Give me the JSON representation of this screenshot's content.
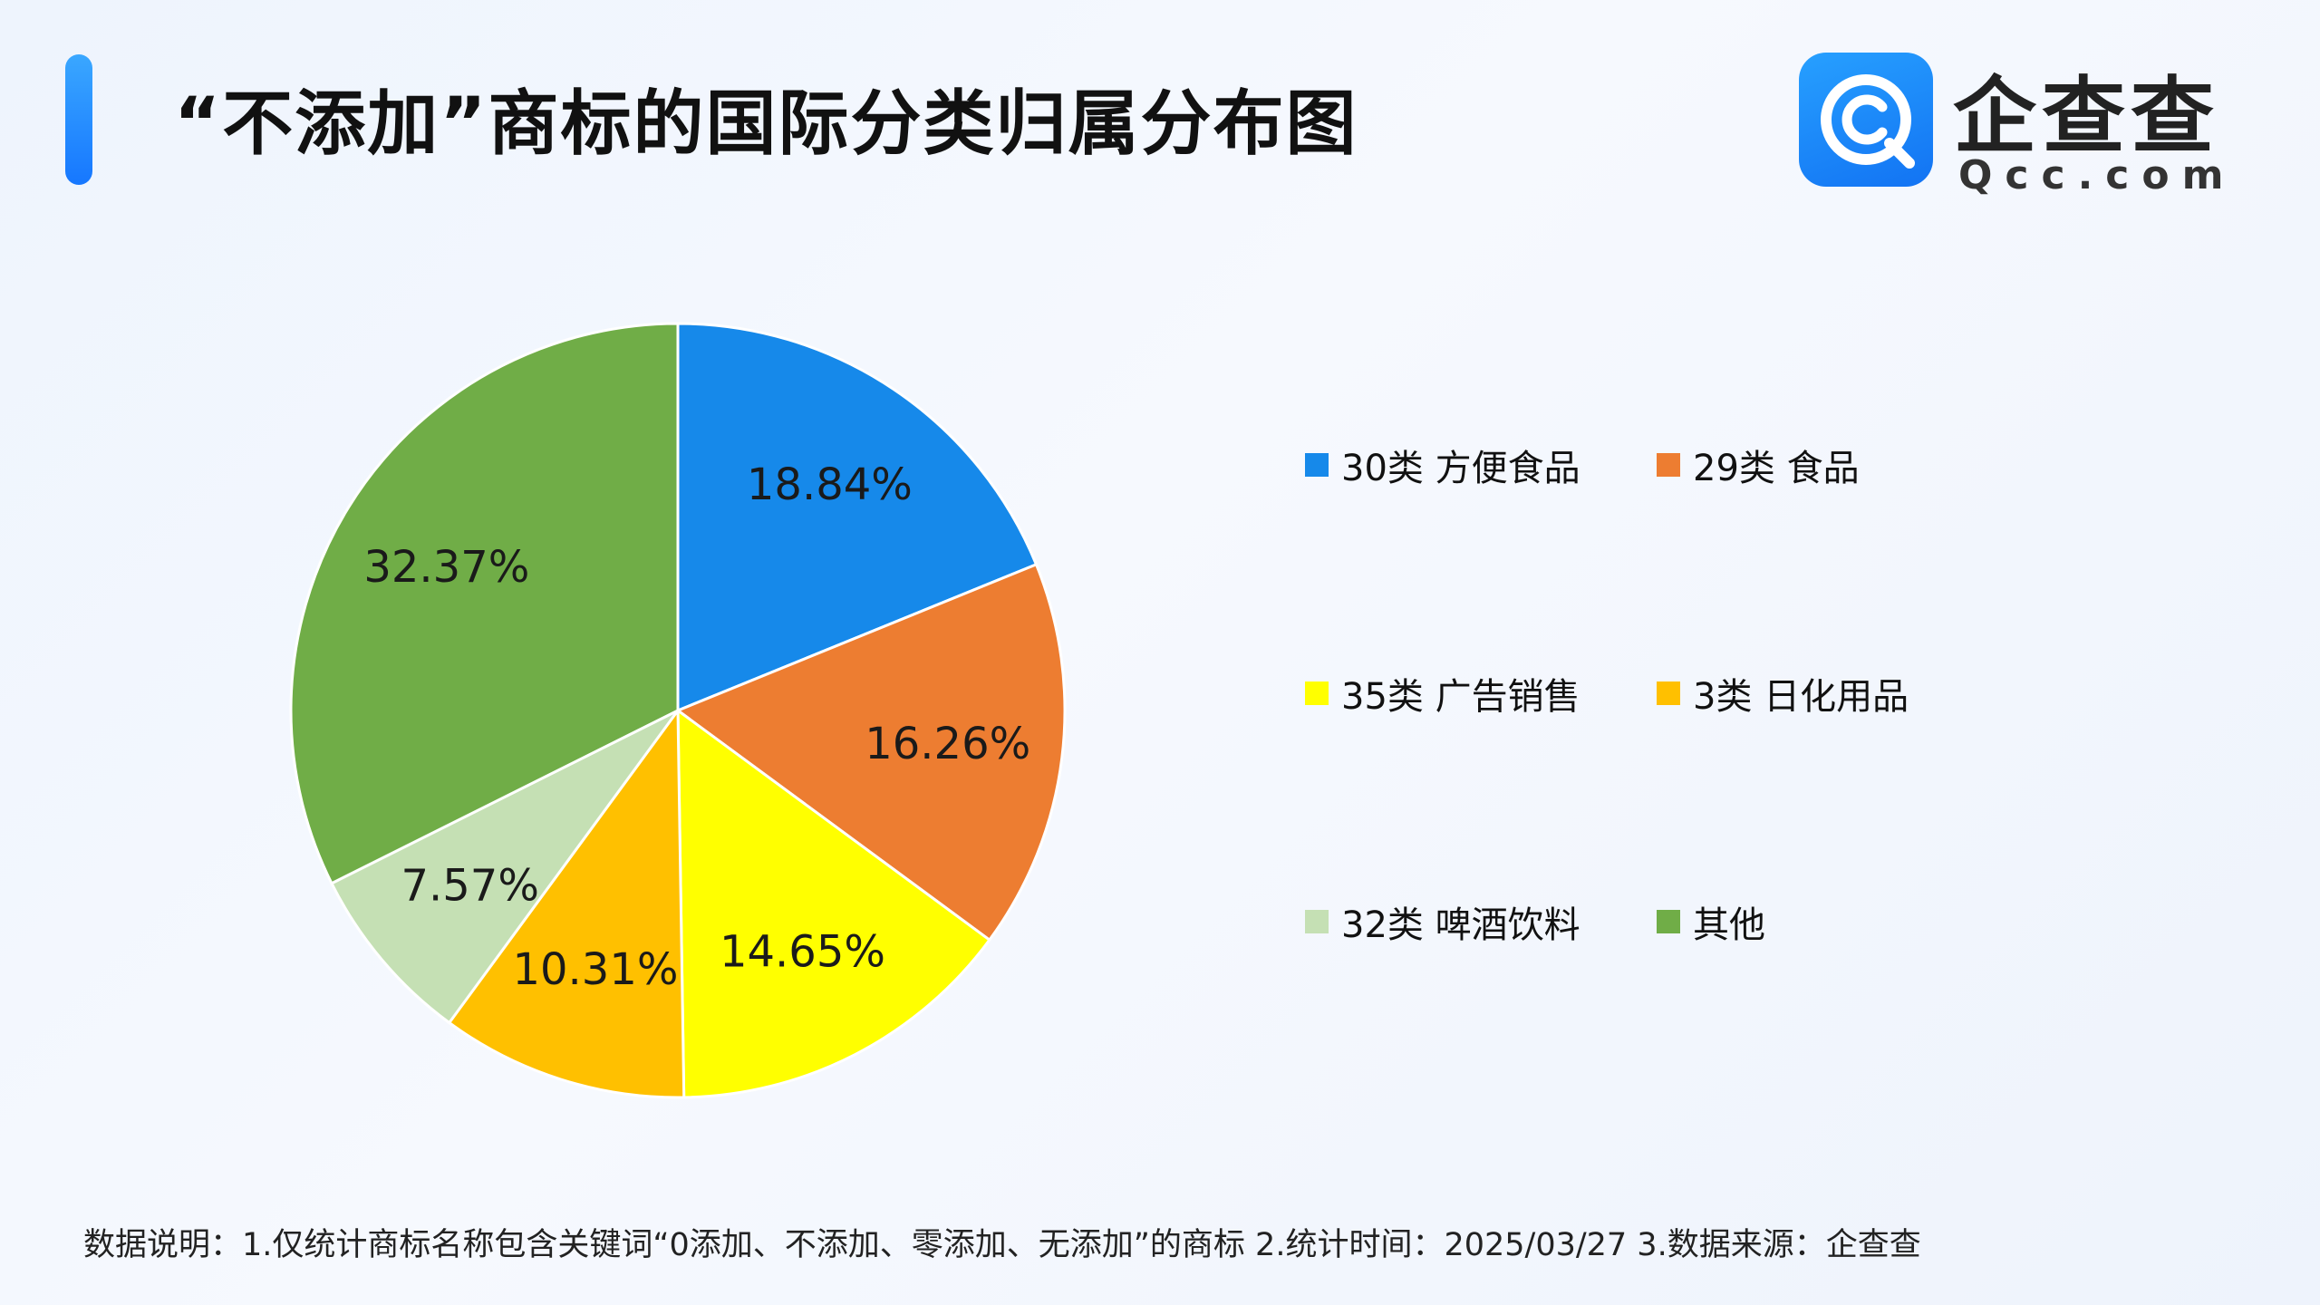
{
  "header": {
    "title": "“不添加”商标的国际分类归属分布图"
  },
  "logo": {
    "name": "企查查",
    "domain": "Qcc.com",
    "icon": "qcc-logo-icon"
  },
  "chart_data": {
    "type": "pie",
    "title": "“不添加”商标的国际分类归属分布图",
    "start_angle_deg": 0,
    "direction": "clockwise",
    "legend_position": "right",
    "slices": [
      {
        "label": "30类 方便食品",
        "value": 18.84,
        "value_label": "18.84%",
        "color": "#1689EA"
      },
      {
        "label": "29类 食品",
        "value": 16.26,
        "value_label": "16.26%",
        "color": "#ED7D31"
      },
      {
        "label": "35类 广告销售",
        "value": 14.65,
        "value_label": "14.65%",
        "color": "#FFFF00"
      },
      {
        "label": "3类 日化用品",
        "value": 10.31,
        "value_label": "10.31%",
        "color": "#FFC000"
      },
      {
        "label": "32类 啤酒饮料",
        "value": 7.57,
        "value_label": "7.57%",
        "color": "#C5E0B4"
      },
      {
        "label": "其他",
        "value": 32.37,
        "value_label": "32.37%",
        "color": "#70AD47"
      }
    ]
  },
  "footnote": "数据说明：1.仅统计商标名称包含关键词“0添加、不添加、零添加、无添加”的商标   2.统计时间：2025/03/27    3.数据来源：企查查"
}
